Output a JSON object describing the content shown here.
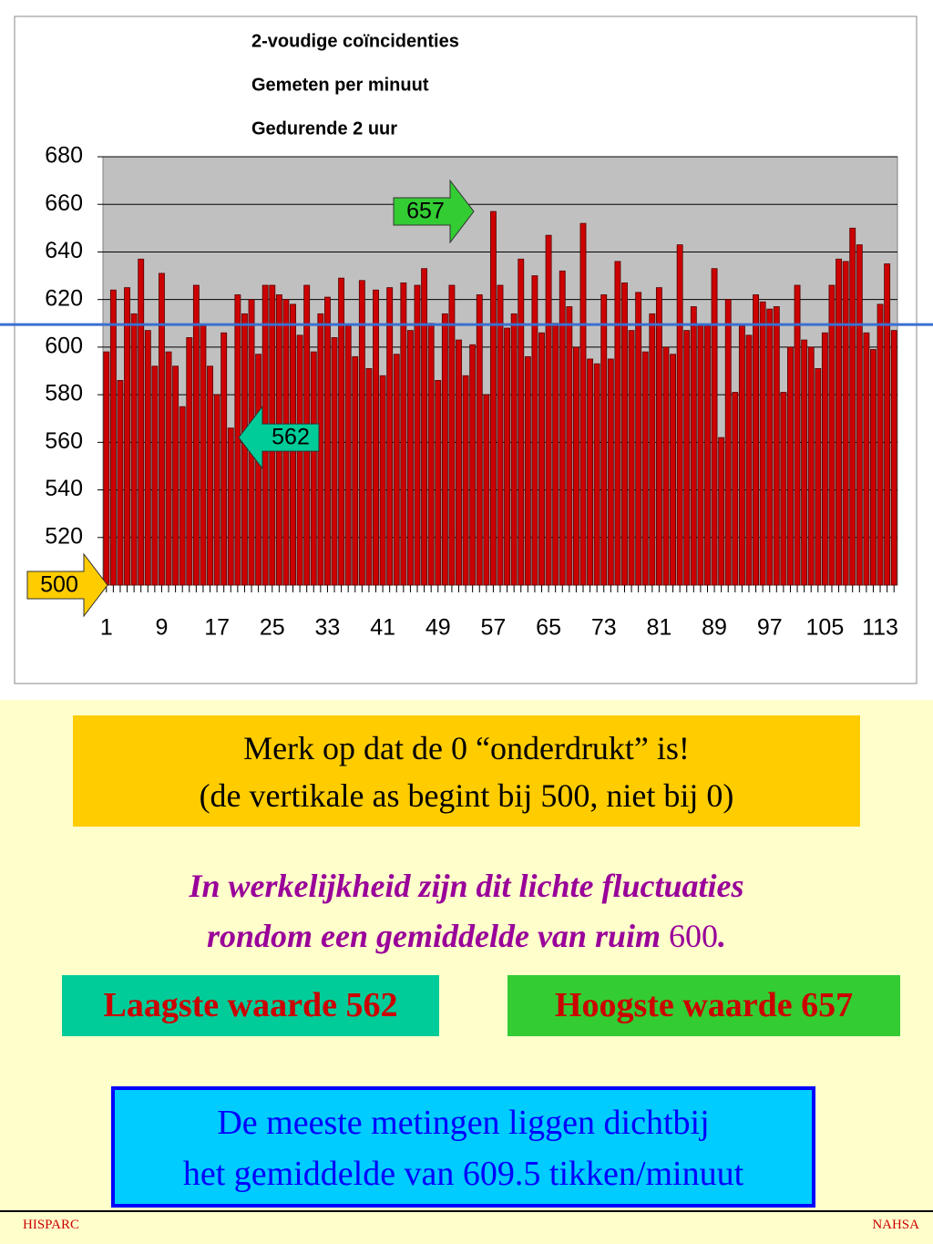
{
  "chart_data": {
    "type": "bar",
    "title_lines": [
      "2-voudige coïncidenties",
      "Gemeten per minuut",
      "Gedurende 2 uur"
    ],
    "categories": [
      "1",
      null,
      null,
      null,
      null,
      null,
      null,
      null,
      "9",
      null,
      null,
      null,
      null,
      null,
      null,
      null,
      "17",
      null,
      null,
      null,
      null,
      null,
      null,
      null,
      "25",
      null,
      null,
      null,
      null,
      null,
      null,
      null,
      "33",
      null,
      null,
      null,
      null,
      null,
      null,
      null,
      "41",
      null,
      null,
      null,
      null,
      null,
      null,
      null,
      "49",
      null,
      null,
      null,
      null,
      null,
      null,
      null,
      "57",
      null,
      null,
      null,
      null,
      null,
      null,
      null,
      "65",
      null,
      null,
      null,
      null,
      null,
      null,
      null,
      "73",
      null,
      null,
      null,
      null,
      null,
      null,
      null,
      "81",
      null,
      null,
      null,
      null,
      null,
      null,
      null,
      "89",
      null,
      null,
      null,
      null,
      null,
      null,
      null,
      "97",
      null,
      null,
      null,
      null,
      null,
      null,
      null,
      "105",
      null,
      null,
      null,
      null,
      null,
      null,
      null,
      "113",
      null,
      null
    ],
    "values": [
      598,
      624,
      586,
      625,
      614,
      637,
      607,
      592,
      631,
      598,
      592,
      575,
      604,
      626,
      609,
      592,
      580,
      606,
      566,
      622,
      614,
      620,
      597,
      626,
      626,
      622,
      620,
      618,
      605,
      626,
      598,
      614,
      621,
      604,
      629,
      609,
      596,
      628,
      591,
      624,
      588,
      625,
      597,
      627,
      607,
      626,
      633,
      610,
      586,
      614,
      626,
      603,
      588,
      601,
      622,
      580,
      657,
      626,
      608,
      614,
      637,
      596,
      630,
      606,
      647,
      610,
      632,
      617,
      600,
      652,
      595,
      593,
      622,
      595,
      636,
      627,
      607,
      623,
      598,
      614,
      625,
      600,
      597,
      643,
      607,
      617,
      609,
      609,
      633,
      562,
      620,
      581,
      609,
      605,
      622,
      619,
      616,
      617,
      581,
      600,
      626,
      603,
      600,
      591,
      606,
      626,
      637,
      636,
      650,
      643,
      606,
      599,
      618,
      635,
      607
    ],
    "color": "#cc0000",
    "ylim": [
      500,
      680
    ],
    "yticks": [
      520,
      540,
      560,
      580,
      600,
      620,
      640,
      660,
      680
    ],
    "grid": true,
    "reference_line": 609.5,
    "annotations": [
      {
        "value": 657,
        "color": "#33cc33"
      },
      {
        "value": 562,
        "color": "#00cc99"
      },
      {
        "value": 500,
        "color": "#ffcc00"
      }
    ]
  },
  "notes": {
    "box1": [
      "Merk op dat de 0 “onderdrukt” is!",
      "(de vertikale as begint bij 500, niet bij 0)"
    ],
    "remark": [
      "In werkelijkheid zijn dit lichte fluctuaties",
      "rondom een gemiddelde van ruim",
      "600",
      "."
    ],
    "lowest": "Laagste waarde 562",
    "highest": "Hoogste waarde 657",
    "box2": [
      "De meeste metingen liggen dichtbij",
      "het gemiddelde van 609.5 tikken/minuut"
    ]
  },
  "footer": {
    "left": "HISPARC",
    "right": "NAHSA"
  }
}
